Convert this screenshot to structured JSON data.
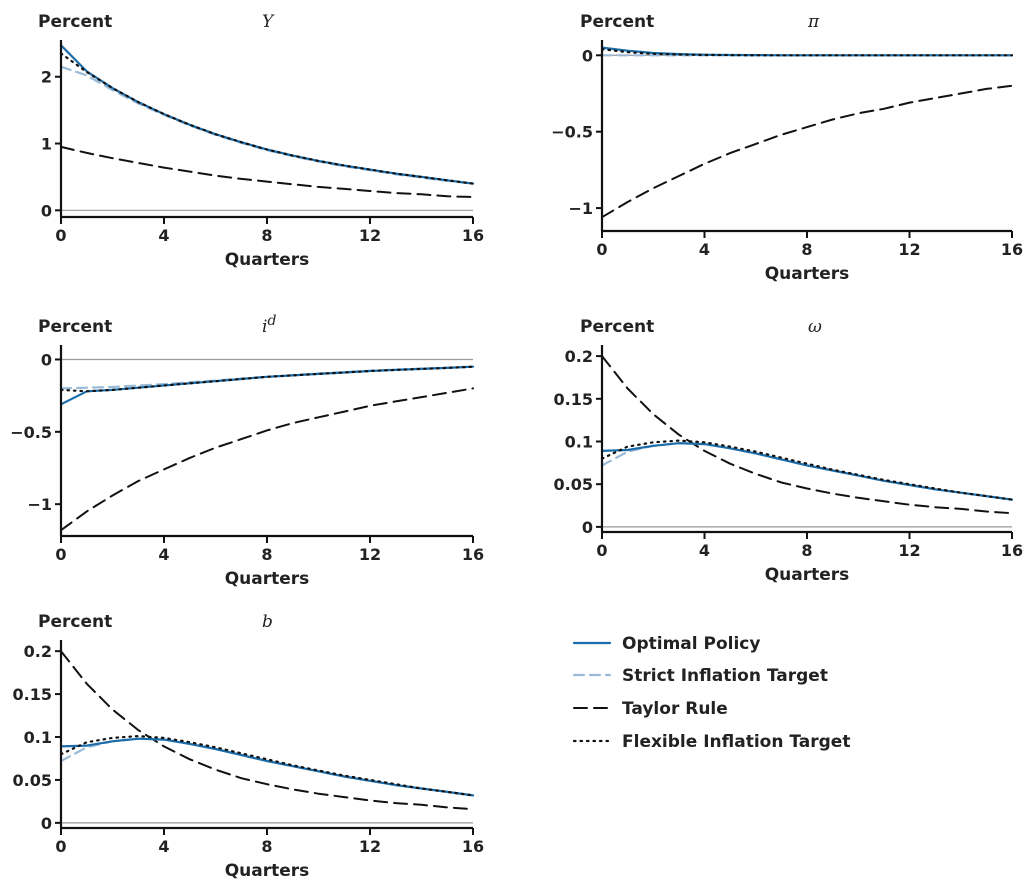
{
  "x": [
    0,
    1,
    2,
    3,
    4,
    5,
    6,
    7,
    8,
    9,
    10,
    11,
    12,
    13,
    14,
    15,
    16
  ],
  "legend": [
    {
      "name": "Optimal Policy",
      "color": "#1b6ca8",
      "style": "solid"
    },
    {
      "name": "Strict Inflation Target",
      "color": "#9bbad8",
      "style": "dashed"
    },
    {
      "name": "Taylor Rule",
      "color": "#111111",
      "style": "longdash"
    },
    {
      "name": "Flexible Inflation Target",
      "color": "#111111",
      "style": "dotted"
    }
  ],
  "chart_data": [
    {
      "type": "line",
      "title": "Y",
      "title_sup": "",
      "ylabel": "Percent",
      "xlabel": "Quarters",
      "xlim": [
        0,
        16
      ],
      "ylim": [
        -0.1,
        2.55
      ],
      "xticks": [
        0,
        4,
        8,
        12,
        16
      ],
      "yticks": [
        0,
        1,
        2
      ],
      "ytick_labels": [
        "0",
        "1",
        "2"
      ],
      "zero_line": true,
      "series": [
        {
          "name": "Optimal Policy",
          "values": [
            2.47,
            2.08,
            1.83,
            1.62,
            1.44,
            1.28,
            1.14,
            1.02,
            0.91,
            0.82,
            0.74,
            0.67,
            0.61,
            0.55,
            0.5,
            0.45,
            0.4
          ]
        },
        {
          "name": "Strict Inflation Target",
          "values": [
            2.15,
            2.02,
            1.8,
            1.6,
            1.43,
            1.27,
            1.13,
            1.01,
            0.9,
            0.81,
            0.73,
            0.66,
            0.6,
            0.54,
            0.49,
            0.44,
            0.4
          ]
        },
        {
          "name": "Taylor Rule",
          "values": [
            0.95,
            0.86,
            0.78,
            0.71,
            0.64,
            0.58,
            0.52,
            0.47,
            0.43,
            0.39,
            0.35,
            0.32,
            0.29,
            0.26,
            0.24,
            0.21,
            0.2
          ]
        },
        {
          "name": "Flexible Inflation Target",
          "values": [
            2.35,
            2.07,
            1.83,
            1.62,
            1.44,
            1.28,
            1.14,
            1.02,
            0.91,
            0.82,
            0.74,
            0.67,
            0.61,
            0.55,
            0.5,
            0.45,
            0.4
          ]
        }
      ]
    },
    {
      "type": "line",
      "title": "π",
      "title_sup": "",
      "ylabel": "Percent",
      "xlabel": "Quarters",
      "xlim": [
        0,
        16
      ],
      "ylim": [
        -1.15,
        0.1
      ],
      "xticks": [
        0,
        4,
        8,
        12,
        16
      ],
      "yticks": [
        0,
        -0.5,
        -1
      ],
      "ytick_labels": [
        "0",
        "−0.5",
        "−1"
      ],
      "zero_line": true,
      "series": [
        {
          "name": "Optimal Policy",
          "values": [
            0.05,
            0.03,
            0.015,
            0.008,
            0.004,
            0.002,
            0.001,
            0,
            0,
            0,
            0,
            0,
            0,
            0,
            0,
            0,
            0
          ]
        },
        {
          "name": "Strict Inflation Target",
          "values": [
            0,
            0,
            0,
            0,
            0,
            0,
            0,
            0,
            0,
            0,
            0,
            0,
            0,
            0,
            0,
            0,
            0
          ]
        },
        {
          "name": "Taylor Rule",
          "values": [
            -1.06,
            -0.96,
            -0.87,
            -0.79,
            -0.71,
            -0.64,
            -0.58,
            -0.52,
            -0.47,
            -0.42,
            -0.38,
            -0.35,
            -0.31,
            -0.28,
            -0.25,
            -0.22,
            -0.2
          ]
        },
        {
          "name": "Flexible Inflation Target",
          "values": [
            0.04,
            0.02,
            0.01,
            0.005,
            0.002,
            0.001,
            0,
            0,
            0,
            0,
            0,
            0,
            0,
            0,
            0,
            0,
            0
          ]
        }
      ]
    },
    {
      "type": "line",
      "title": "i",
      "title_sup": "d",
      "ylabel": "Percent",
      "xlabel": "Quarters",
      "xlim": [
        0,
        16
      ],
      "ylim": [
        -1.22,
        0.1
      ],
      "xticks": [
        0,
        4,
        8,
        12,
        16
      ],
      "yticks": [
        0,
        -0.5,
        -1
      ],
      "ytick_labels": [
        "0",
        "−0.5",
        "−1"
      ],
      "zero_line": true,
      "series": [
        {
          "name": "Optimal Policy",
          "values": [
            -0.31,
            -0.22,
            -0.21,
            -0.195,
            -0.18,
            -0.165,
            -0.15,
            -0.135,
            -0.12,
            -0.11,
            -0.1,
            -0.09,
            -0.08,
            -0.072,
            -0.065,
            -0.058,
            -0.05
          ]
        },
        {
          "name": "Strict Inflation Target",
          "values": [
            -0.2,
            -0.195,
            -0.19,
            -0.18,
            -0.17,
            -0.157,
            -0.145,
            -0.132,
            -0.12,
            -0.108,
            -0.097,
            -0.087,
            -0.078,
            -0.07,
            -0.063,
            -0.056,
            -0.05
          ]
        },
        {
          "name": "Taylor Rule",
          "values": [
            -1.18,
            -1.05,
            -0.94,
            -0.84,
            -0.76,
            -0.68,
            -0.61,
            -0.55,
            -0.49,
            -0.44,
            -0.4,
            -0.36,
            -0.32,
            -0.29,
            -0.26,
            -0.23,
            -0.2
          ]
        },
        {
          "name": "Flexible Inflation Target",
          "values": [
            -0.21,
            -0.22,
            -0.21,
            -0.195,
            -0.18,
            -0.165,
            -0.15,
            -0.135,
            -0.12,
            -0.11,
            -0.1,
            -0.09,
            -0.08,
            -0.072,
            -0.065,
            -0.058,
            -0.05
          ]
        }
      ]
    },
    {
      "type": "line",
      "title": "ω",
      "title_sup": "",
      "ylabel": "Percent",
      "xlabel": "Quarters",
      "xlim": [
        0,
        16
      ],
      "ylim": [
        -0.006,
        0.213
      ],
      "xticks": [
        0,
        4,
        8,
        12,
        16
      ],
      "yticks": [
        0,
        0.05,
        0.1,
        0.15,
        0.2
      ],
      "ytick_labels": [
        "0",
        "0.05",
        "0.1",
        "0.15",
        "0.2"
      ],
      "zero_line": true,
      "series": [
        {
          "name": "Optimal Policy",
          "values": [
            0.089,
            0.09,
            0.095,
            0.098,
            0.097,
            0.092,
            0.086,
            0.079,
            0.072,
            0.066,
            0.06,
            0.054,
            0.049,
            0.044,
            0.04,
            0.036,
            0.032
          ]
        },
        {
          "name": "Strict Inflation Target",
          "values": [
            0.072,
            0.088,
            0.095,
            0.098,
            0.097,
            0.092,
            0.086,
            0.079,
            0.072,
            0.066,
            0.06,
            0.054,
            0.049,
            0.044,
            0.04,
            0.036,
            0.032
          ]
        },
        {
          "name": "Taylor Rule",
          "values": [
            0.2,
            0.162,
            0.132,
            0.108,
            0.089,
            0.074,
            0.062,
            0.052,
            0.045,
            0.039,
            0.034,
            0.03,
            0.026,
            0.023,
            0.021,
            0.018,
            0.016
          ]
        },
        {
          "name": "Flexible Inflation Target",
          "values": [
            0.08,
            0.094,
            0.099,
            0.101,
            0.099,
            0.094,
            0.088,
            0.081,
            0.074,
            0.067,
            0.061,
            0.055,
            0.05,
            0.045,
            0.04,
            0.036,
            0.032
          ]
        }
      ]
    },
    {
      "type": "line",
      "title": "b",
      "title_sup": "",
      "ylabel": "Percent",
      "xlabel": "Quarters",
      "xlim": [
        0,
        16
      ],
      "ylim": [
        -0.006,
        0.213
      ],
      "xticks": [
        0,
        4,
        8,
        12,
        16
      ],
      "yticks": [
        0,
        0.05,
        0.1,
        0.15,
        0.2
      ],
      "ytick_labels": [
        "0",
        "0.05",
        "0.1",
        "0.15",
        "0.2"
      ],
      "zero_line": true,
      "series": [
        {
          "name": "Optimal Policy",
          "values": [
            0.089,
            0.09,
            0.095,
            0.098,
            0.097,
            0.092,
            0.086,
            0.079,
            0.072,
            0.066,
            0.06,
            0.054,
            0.049,
            0.044,
            0.04,
            0.036,
            0.032
          ]
        },
        {
          "name": "Strict Inflation Target",
          "values": [
            0.072,
            0.088,
            0.095,
            0.098,
            0.097,
            0.092,
            0.086,
            0.079,
            0.072,
            0.066,
            0.06,
            0.054,
            0.049,
            0.044,
            0.04,
            0.036,
            0.032
          ]
        },
        {
          "name": "Taylor Rule",
          "values": [
            0.2,
            0.162,
            0.132,
            0.108,
            0.089,
            0.074,
            0.062,
            0.052,
            0.045,
            0.039,
            0.034,
            0.03,
            0.026,
            0.023,
            0.021,
            0.018,
            0.016
          ]
        },
        {
          "name": "Flexible Inflation Target",
          "values": [
            0.08,
            0.094,
            0.099,
            0.101,
            0.099,
            0.094,
            0.088,
            0.081,
            0.074,
            0.067,
            0.061,
            0.055,
            0.05,
            0.045,
            0.04,
            0.036,
            0.032
          ]
        }
      ]
    }
  ]
}
